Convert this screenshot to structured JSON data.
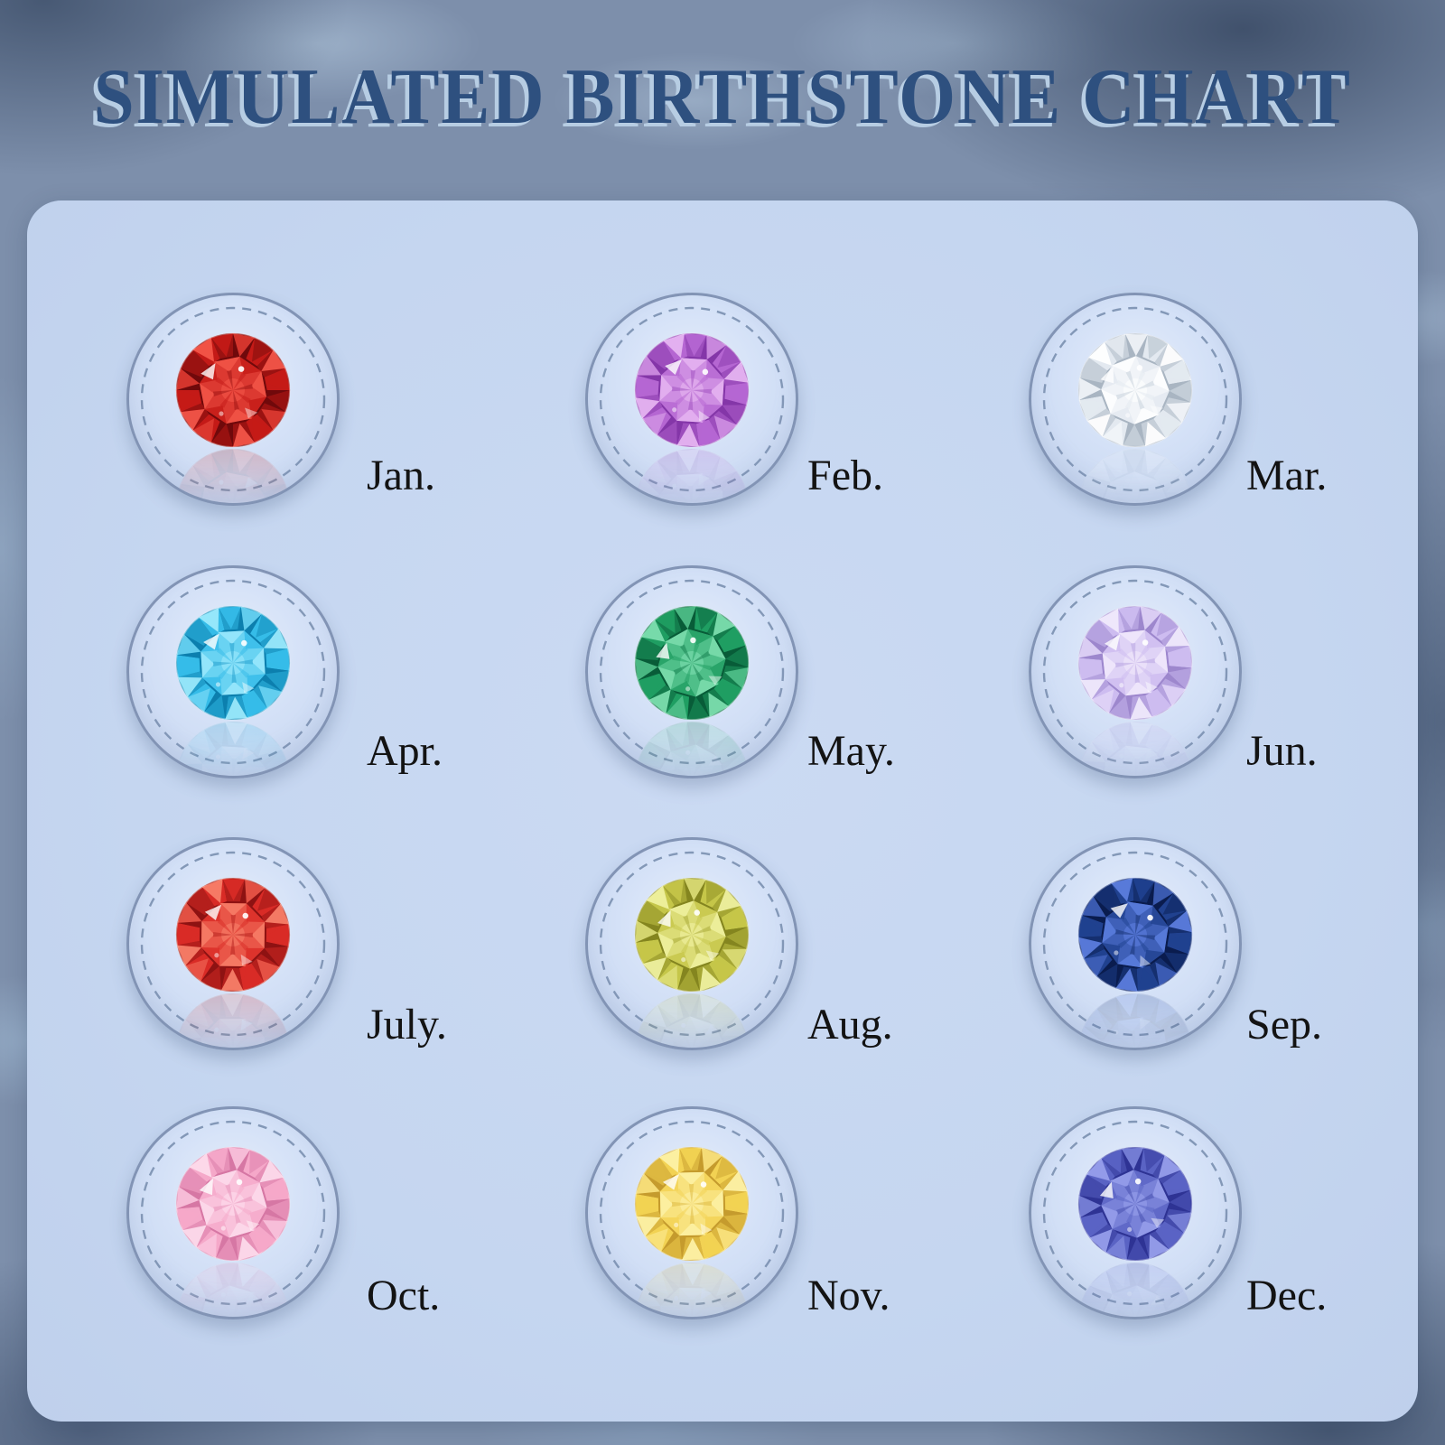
{
  "title": "SIMULATED BIRTHSTONE CHART",
  "theme": {
    "outer_background": "#7d8fab",
    "outer_background_dark": "#24406b",
    "water_highlight": "#c4dbee",
    "panel_background": "#c6d7f0",
    "medallion_fill_center": "#e6eefb",
    "medallion_fill_edge": "#c4d4ef",
    "medallion_border": "#8294b5",
    "dashed_ring": "#7e93b3",
    "title_color": "#2e507f",
    "title_highlight": "#b7cde3",
    "label_color": "#131313"
  },
  "months": [
    {
      "label": "Jan.",
      "stone": "dark-red",
      "gem": {
        "light": "#f4574a",
        "base": "#c41a17",
        "dark": "#70090b"
      }
    },
    {
      "label": "Feb.",
      "stone": "purple",
      "gem": {
        "light": "#e7b6f2",
        "base": "#b566d2",
        "dark": "#8436a8"
      }
    },
    {
      "label": "Mar.",
      "stone": "white-clear",
      "gem": {
        "light": "#ffffff",
        "base": "#e3e9f0",
        "dark": "#a9b5c2"
      }
    },
    {
      "label": "Apr.",
      "stone": "aqua-blue",
      "gem": {
        "light": "#9deafc",
        "base": "#35bce8",
        "dark": "#0c7fae"
      }
    },
    {
      "label": "May.",
      "stone": "green",
      "gem": {
        "light": "#7fe0b0",
        "base": "#1f9e62",
        "dark": "#085c38"
      }
    },
    {
      "label": "Jun.",
      "stone": "pale-lavender",
      "gem": {
        "light": "#f1eafc",
        "base": "#cdbcf0",
        "dark": "#9d87cd"
      }
    },
    {
      "label": "July.",
      "stone": "bright-red",
      "gem": {
        "light": "#f8816a",
        "base": "#d92b26",
        "dark": "#8e1212"
      }
    },
    {
      "label": "Aug.",
      "stone": "yellow-green",
      "gem": {
        "light": "#f0f2a2",
        "base": "#c5c649",
        "dark": "#84851f"
      }
    },
    {
      "label": "Sep.",
      "stone": "dark-blue",
      "gem": {
        "light": "#5d7fe0",
        "base": "#20418f",
        "dark": "#0a1c4e"
      }
    },
    {
      "label": "Oct.",
      "stone": "pink",
      "gem": {
        "light": "#fddcec",
        "base": "#f5a8c9",
        "dark": "#d677a4"
      }
    },
    {
      "label": "Nov.",
      "stone": "golden-yellow",
      "gem": {
        "light": "#fdf2a8",
        "base": "#f2d253",
        "dark": "#c59b2d"
      }
    },
    {
      "label": "Dec.",
      "stone": "violet-blue",
      "gem": {
        "light": "#98a0ec",
        "base": "#5a63c4",
        "dark": "#2e3394"
      }
    }
  ],
  "chart_data": {
    "type": "table",
    "title": "SIMULATED BIRTHSTONE CHART",
    "categories": [
      "Jan.",
      "Feb.",
      "Mar.",
      "Apr.",
      "May.",
      "Jun.",
      "July.",
      "Aug.",
      "Sep.",
      "Oct.",
      "Nov.",
      "Dec."
    ],
    "values": [
      "dark red stone",
      "purple stone",
      "clear white stone",
      "aqua blue stone",
      "green stone",
      "pale lavender stone",
      "bright red stone",
      "yellow-green stone",
      "dark blue stone",
      "pink stone",
      "golden yellow stone",
      "violet-blue stone"
    ],
    "layout": "4 rows x 3 columns of round gem medallions with month labels",
    "legend_position": "none"
  }
}
